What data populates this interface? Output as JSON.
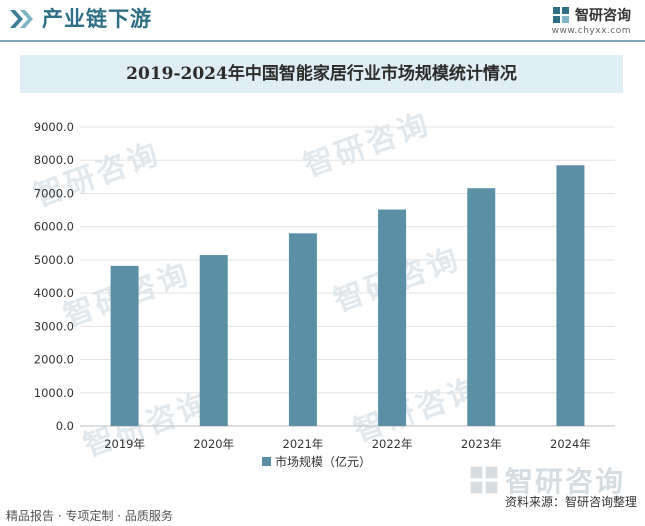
{
  "header": {
    "section_title": "产业链下游",
    "section_icon": "double-chevron-icon"
  },
  "logo": {
    "name": "智研咨询",
    "url": "www.chyxx.com",
    "icon": "chyxx-logo-icon"
  },
  "watermark_text": "智研咨询",
  "chart_data": {
    "type": "bar",
    "title": "2019-2024年中国智能家居行业市场规模统计情况",
    "categories": [
      "2019年",
      "2020年",
      "2021年",
      "2022年",
      "2023年",
      "2024年"
    ],
    "series": [
      {
        "name": "市场规模（亿元）",
        "values": [
          4820,
          5145,
          5800,
          6515,
          7157,
          7848
        ],
        "color": "#5b8fa6"
      }
    ],
    "ylim": [
      0,
      9000
    ],
    "yticks": [
      "9000.0",
      "8000.0",
      "7000.0",
      "6000.0",
      "5000.0",
      "4000.0",
      "3000.0",
      "2000.0",
      "1000.0",
      "0.0"
    ],
    "grid": true,
    "legend": "bottom-center"
  },
  "footer": {
    "left": "精品报告 · 专项定制 · 品质服务",
    "right": "资料来源：智研咨询整理"
  }
}
